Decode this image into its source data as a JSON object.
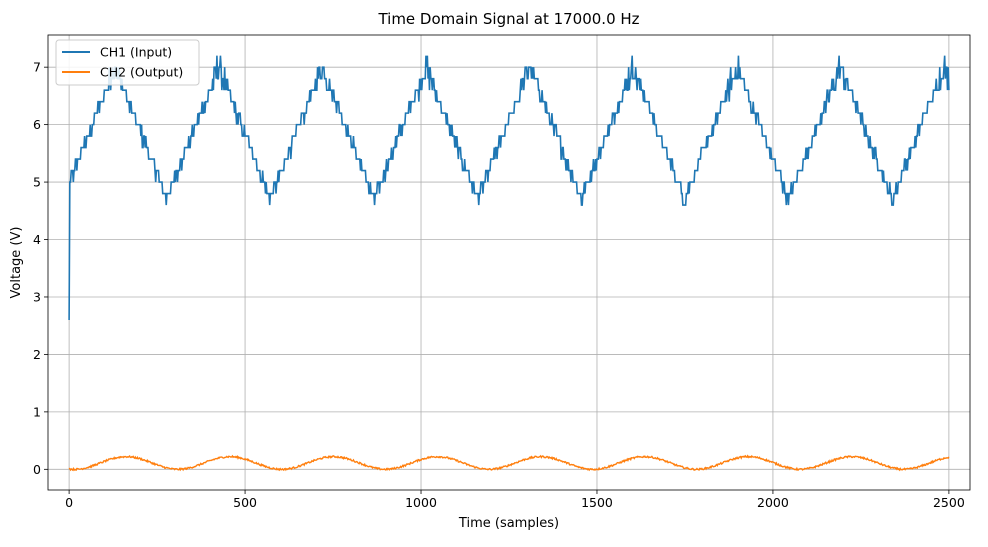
{
  "chart_data": {
    "type": "line",
    "title": "Time Domain Signal at 17000.0 Hz",
    "xlabel": "Time (samples)",
    "ylabel": "Voltage (V)",
    "xlim": [
      -60,
      2560
    ],
    "ylim": [
      -0.36,
      7.56
    ],
    "x_ticks": [
      0,
      500,
      1000,
      1500,
      2000,
      2500
    ],
    "y_ticks": [
      0,
      1,
      2,
      3,
      4,
      5,
      6,
      7
    ],
    "grid": true,
    "legend_position": "top-left",
    "num_samples": 2500,
    "series": [
      {
        "name": "CH1 (Input)",
        "color": "#1f77b4",
        "waveform": "triangle",
        "min": 2.4,
        "max": 7.0,
        "period_samples": 294.6,
        "start_value": 2.6,
        "peaks_at": [
          130,
          425,
          720,
          1015,
          1310,
          1605,
          1900,
          2195,
          2490
        ],
        "troughs_at": [
          277,
          572,
          867,
          1162,
          1457,
          1752,
          2047,
          2342
        ],
        "quantization_step": 0.2,
        "spike_extremes": [
          2.2,
          7.2
        ]
      },
      {
        "name": "CH2 (Output)",
        "color": "#ff7f0e",
        "waveform": "sine",
        "min": 0.0,
        "max": 0.22,
        "period_samples": 294.6,
        "start_value": 0.02,
        "noise_amplitude": 0.015
      }
    ]
  }
}
